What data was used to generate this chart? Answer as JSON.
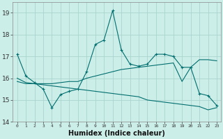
{
  "xlabel": "Humidex (Indice chaleur)",
  "background_color": "#cceee8",
  "grid_color": "#aad4ce",
  "line_color": "#006e6e",
  "xlim": [
    -0.5,
    23.5
  ],
  "ylim": [
    14,
    19.5
  ],
  "yticks": [
    14,
    15,
    16,
    17,
    18,
    19
  ],
  "xticks": [
    0,
    1,
    2,
    3,
    4,
    5,
    6,
    7,
    8,
    9,
    10,
    11,
    12,
    13,
    14,
    15,
    16,
    17,
    18,
    19,
    20,
    21,
    22,
    23
  ],
  "line1_x": [
    0,
    1,
    2,
    3,
    4,
    5,
    6,
    7,
    8,
    9,
    10,
    11,
    12,
    13,
    14,
    15,
    16,
    17,
    18,
    19,
    20,
    21,
    22,
    23
  ],
  "line1_y": [
    17.1,
    16.1,
    15.8,
    15.5,
    14.65,
    15.25,
    15.4,
    15.5,
    16.3,
    17.55,
    17.75,
    19.1,
    17.3,
    16.65,
    16.55,
    16.65,
    17.1,
    17.1,
    17.0,
    16.5,
    16.5,
    15.3,
    15.2,
    14.75
  ],
  "line2_x": [
    0,
    1,
    2,
    3,
    4,
    5,
    6,
    7,
    8,
    9,
    10,
    11,
    12,
    13,
    14,
    15,
    16,
    17,
    18,
    19,
    20,
    21,
    22,
    23
  ],
  "line2_y": [
    15.85,
    15.75,
    15.75,
    15.7,
    15.65,
    15.6,
    15.55,
    15.5,
    15.45,
    15.4,
    15.35,
    15.3,
    15.25,
    15.2,
    15.15,
    15.0,
    14.95,
    14.9,
    14.85,
    14.8,
    14.75,
    14.7,
    14.55,
    14.65
  ],
  "line3_x": [
    0,
    1,
    2,
    3,
    4,
    5,
    6,
    7,
    8,
    9,
    10,
    11,
    12,
    13,
    14,
    15,
    16,
    17,
    18,
    19,
    20,
    21,
    22,
    23
  ],
  "line3_y": [
    16.0,
    15.8,
    15.75,
    15.75,
    15.75,
    15.8,
    15.85,
    15.85,
    16.0,
    16.1,
    16.2,
    16.3,
    16.4,
    16.45,
    16.5,
    16.55,
    16.6,
    16.65,
    16.7,
    15.85,
    16.5,
    16.85,
    16.85,
    16.8
  ]
}
